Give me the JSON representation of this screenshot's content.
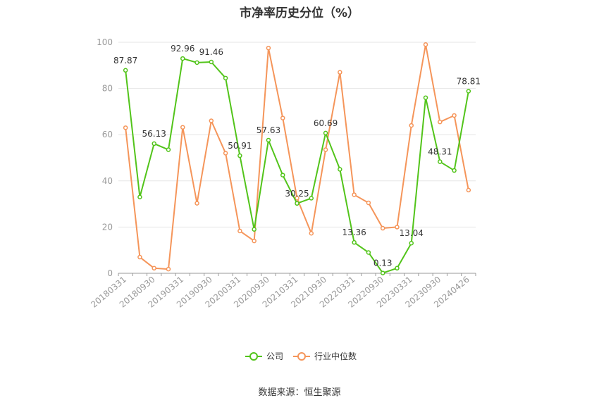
{
  "chart_data": {
    "type": "line",
    "title": "市净率历史分位（%）",
    "source": "数据来源：恒生聚源",
    "ylim": [
      0,
      100
    ],
    "yticks": [
      0,
      20,
      40,
      60,
      80,
      100
    ],
    "grid": true,
    "legend_position": "bottom",
    "x_tick_labels": [
      "20180331",
      "20180930",
      "20190331",
      "20190930",
      "20200331",
      "20200930",
      "20210331",
      "20210930",
      "20220331",
      "20220930",
      "20230331",
      "20230930",
      "20240426"
    ],
    "series": [
      {
        "name": "公司",
        "color": "#52c41a",
        "values": [
          87.87,
          33,
          56.13,
          53.5,
          92.96,
          91.2,
          91.46,
          84.5,
          50.91,
          19,
          57.63,
          42.5,
          30.25,
          32.5,
          60.69,
          45,
          13.36,
          9,
          0.13,
          2.2,
          13.04,
          76,
          48.31,
          44.5,
          78.81
        ],
        "labeled": {
          "0": "87.87",
          "2": "56.13",
          "4": "92.96",
          "6": "91.46",
          "8": "50.91",
          "10": "57.63",
          "12": "30.25",
          "14": "60.69",
          "16": "13.36",
          "18": "0.13",
          "20": "13.04",
          "22": "48.31",
          "24": "78.81"
        }
      },
      {
        "name": "行业中位数",
        "color": "#f5955a",
        "values": [
          63,
          7,
          2.2,
          1.8,
          63.2,
          30.3,
          66,
          52,
          18.3,
          14,
          97.5,
          67.2,
          32.5,
          17.3,
          53.5,
          87,
          34,
          30.5,
          19.5,
          20,
          64,
          99,
          65.5,
          68.3,
          36
        ]
      }
    ]
  }
}
